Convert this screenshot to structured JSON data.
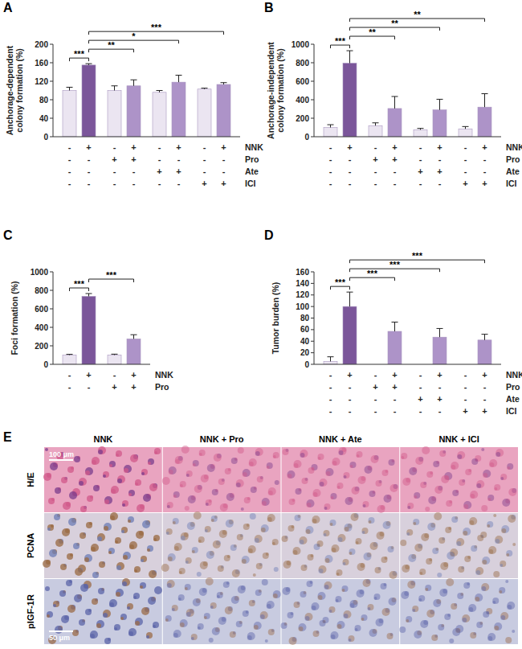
{
  "chart_data": [
    {
      "type": "bar",
      "title": "A",
      "ylabel": [
        "Anchorage-dependent",
        "colony formation (%)"
      ],
      "categories": [
        null,
        null,
        null,
        null,
        null,
        null,
        null,
        null
      ],
      "values": [
        100,
        155,
        100,
        110,
        96,
        118,
        103,
        113
      ],
      "errors": [
        7,
        3,
        10,
        13,
        4,
        15,
        2,
        4
      ],
      "colors": [
        "#ebe5f1",
        "#7b569a",
        "#ebe5f1",
        "#ad93c8",
        "#ebe5f1",
        "#ad93c8",
        "#ebe5f1",
        "#ad93c8"
      ],
      "ylim": [
        0,
        200
      ],
      "yticks": [
        0,
        40,
        80,
        120,
        160,
        200
      ],
      "treatments": [
        {
          "name": "NNK",
          "values": [
            "-",
            "+",
            "-",
            "+",
            "-",
            "+",
            "-",
            "+"
          ]
        },
        {
          "name": "Pro",
          "values": [
            "-",
            "-",
            "+",
            "+",
            "-",
            "-",
            "-",
            "-"
          ]
        },
        {
          "name": "Ate",
          "values": [
            "-",
            "-",
            "-",
            "-",
            "+",
            "+",
            "-",
            "-"
          ]
        },
        {
          "name": "ICI",
          "values": [
            "-",
            "-",
            "-",
            "-",
            "-",
            "-",
            "+",
            "+"
          ]
        }
      ],
      "significance": [
        {
          "from": 0,
          "to": 1,
          "label": "***"
        },
        {
          "from": 1,
          "to": 3,
          "label": "**"
        },
        {
          "from": 1,
          "to": 5,
          "label": "*"
        },
        {
          "from": 1,
          "to": 7,
          "label": "***"
        }
      ]
    },
    {
      "type": "bar",
      "title": "B",
      "ylabel": [
        "Anchorage-independent",
        "colony formation (%)"
      ],
      "categories": [
        null,
        null,
        null,
        null,
        null,
        null,
        null,
        null
      ],
      "values": [
        100,
        795,
        120,
        305,
        75,
        290,
        85,
        320
      ],
      "errors": [
        30,
        135,
        30,
        130,
        15,
        115,
        25,
        145
      ],
      "colors": [
        "#ebe5f1",
        "#7b569a",
        "#ebe5f1",
        "#ad93c8",
        "#ebe5f1",
        "#ad93c8",
        "#ebe5f1",
        "#ad93c8"
      ],
      "ylim": [
        0,
        1000
      ],
      "yticks": [
        0,
        200,
        400,
        600,
        800,
        1000
      ],
      "treatments": [
        {
          "name": "NNK",
          "values": [
            "-",
            "+",
            "-",
            "+",
            "-",
            "+",
            "-",
            "+"
          ]
        },
        {
          "name": "Pro",
          "values": [
            "-",
            "-",
            "+",
            "+",
            "-",
            "-",
            "-",
            "-"
          ]
        },
        {
          "name": "Ate",
          "values": [
            "-",
            "-",
            "-",
            "-",
            "+",
            "+",
            "-",
            "-"
          ]
        },
        {
          "name": "ICI",
          "values": [
            "-",
            "-",
            "-",
            "-",
            "-",
            "-",
            "+",
            "+"
          ]
        }
      ],
      "significance": [
        {
          "from": 0,
          "to": 1,
          "label": "***"
        },
        {
          "from": 1,
          "to": 3,
          "label": "**"
        },
        {
          "from": 1,
          "to": 5,
          "label": "**"
        },
        {
          "from": 1,
          "to": 7,
          "label": "**"
        }
      ]
    },
    {
      "type": "bar",
      "title": "C",
      "ylabel": [
        "Foci formation (%)"
      ],
      "categories": [
        null,
        null,
        null,
        null
      ],
      "values": [
        100,
        735,
        100,
        275
      ],
      "errors": [
        8,
        30,
        10,
        45
      ],
      "colors": [
        "#ebe5f1",
        "#7b569a",
        "#ebe5f1",
        "#ad93c8"
      ],
      "ylim": [
        0,
        1000
      ],
      "yticks": [
        0,
        200,
        400,
        600,
        800,
        1000
      ],
      "treatments": [
        {
          "name": "NNK",
          "values": [
            "-",
            "+",
            "-",
            "+"
          ]
        },
        {
          "name": "Pro",
          "values": [
            "-",
            "-",
            "+",
            "+"
          ]
        }
      ],
      "significance": [
        {
          "from": 0,
          "to": 1,
          "label": "***"
        },
        {
          "from": 1,
          "to": 3,
          "label": "***"
        }
      ]
    },
    {
      "type": "bar",
      "title": "D",
      "ylabel": [
        "Tumor burden (%)"
      ],
      "categories": [
        null,
        null,
        null,
        null,
        null,
        null,
        null,
        null
      ],
      "values": [
        5,
        100,
        0,
        57,
        0,
        47,
        0,
        42
      ],
      "errors": [
        8,
        25,
        0,
        16,
        0,
        15,
        0,
        10
      ],
      "colors": [
        "#ebe5f1",
        "#7b569a",
        "#ebe5f1",
        "#ad93c8",
        "#ebe5f1",
        "#ad93c8",
        "#ebe5f1",
        "#ad93c8"
      ],
      "ylim": [
        0,
        160
      ],
      "yticks": [
        0,
        20,
        40,
        60,
        80,
        100,
        120,
        140,
        160
      ],
      "treatments": [
        {
          "name": "NNK",
          "values": [
            "-",
            "+",
            "-",
            "+",
            "-",
            "+",
            "-",
            "+"
          ]
        },
        {
          "name": "Pro",
          "values": [
            "-",
            "-",
            "+",
            "+",
            "-",
            "-",
            "-",
            "-"
          ]
        },
        {
          "name": "Ate",
          "values": [
            "-",
            "-",
            "-",
            "-",
            "+",
            "+",
            "-",
            "-"
          ]
        },
        {
          "name": "ICI",
          "values": [
            "-",
            "-",
            "-",
            "-",
            "-",
            "-",
            "+",
            "+"
          ]
        }
      ],
      "significance": [
        {
          "from": 0,
          "to": 1,
          "label": "***"
        },
        {
          "from": 1,
          "to": 3,
          "label": "***"
        },
        {
          "from": 1,
          "to": 5,
          "label": "***"
        },
        {
          "from": 1,
          "to": 7,
          "label": "***"
        }
      ]
    }
  ],
  "image_panel": {
    "label": "E",
    "columns": [
      "NNK",
      "NNK + Pro",
      "NNK + Ate",
      "NNK + ICI"
    ],
    "rows": [
      "H/E",
      "PCNA",
      "pIGF-1R"
    ],
    "scale_bars": [
      "100 μm",
      "50 μm"
    ]
  }
}
